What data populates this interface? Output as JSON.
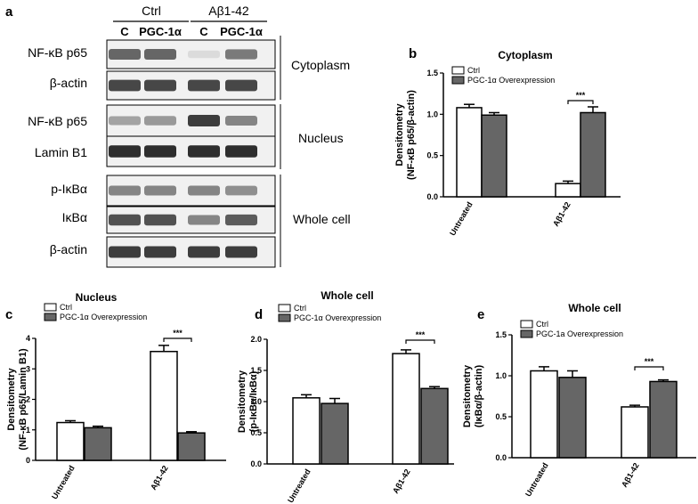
{
  "blot": {
    "panel_label": "a",
    "groups": [
      "Ctrl",
      "Aβ1-42"
    ],
    "lanes": [
      "C",
      "PGC-1α",
      "C",
      "PGC-1α"
    ],
    "rows": [
      "NF-κB p65",
      "β-actin",
      "NF-κB p65",
      "Lamin B1",
      "p-IκBα",
      "IκBα",
      "β-actin"
    ],
    "fractions": [
      "Cytoplasm",
      "Nucleus",
      "Whole cell"
    ],
    "band_intensity": [
      [
        0.65,
        0.65,
        0.08,
        0.55
      ],
      [
        0.8,
        0.8,
        0.8,
        0.8
      ],
      [
        0.35,
        0.4,
        0.85,
        0.5
      ],
      [
        0.92,
        0.92,
        0.92,
        0.92
      ],
      [
        0.5,
        0.5,
        0.5,
        0.45
      ],
      [
        0.75,
        0.75,
        0.5,
        0.7
      ],
      [
        0.85,
        0.85,
        0.85,
        0.85
      ]
    ]
  },
  "colors": {
    "ctrl_bar": "#ffffff",
    "pgc_bar": "#666666",
    "axis": "#000000"
  },
  "chart_data": [
    {
      "id": "b",
      "panel_label": "b",
      "type": "bar",
      "title": "Cytoplasm",
      "ylabel": [
        "Densitometry",
        "(NF-κB p65/β-actin)"
      ],
      "categories": [
        "Untreated",
        "Aβ1-42"
      ],
      "ylim": [
        0,
        1.5
      ],
      "yticks": [
        "0.0",
        "0.5",
        "1.0",
        "1.5"
      ],
      "series": [
        {
          "name": "Ctrl",
          "values": [
            1.08,
            0.16
          ],
          "errors": [
            0.04,
            0.03
          ]
        },
        {
          "name": "PGC-1α Overexpression",
          "values": [
            0.99,
            1.02
          ],
          "errors": [
            0.03,
            0.07
          ]
        }
      ],
      "significance": "***",
      "legend": "top-left"
    },
    {
      "id": "c",
      "panel_label": "c",
      "type": "bar",
      "title": "Nucleus",
      "ylabel": [
        "Densitometry",
        "(NF-κB p65/Lamin B1)"
      ],
      "categories": [
        "Untreated",
        "Aβ1-42"
      ],
      "ylim": [
        0,
        4
      ],
      "yticks": [
        "0",
        "1",
        "2",
        "3",
        "4"
      ],
      "series": [
        {
          "name": "Ctrl",
          "values": [
            1.24,
            3.57
          ],
          "errors": [
            0.06,
            0.2
          ]
        },
        {
          "name": "PGC-1α Overexpression",
          "values": [
            1.07,
            0.9
          ],
          "errors": [
            0.05,
            0.04
          ]
        }
      ],
      "significance": "***",
      "legend": "top-left"
    },
    {
      "id": "d",
      "panel_label": "d",
      "type": "bar",
      "title": "Whole cell",
      "ylabel": [
        "Densitometry",
        "(p-IκBα/IκBα)"
      ],
      "categories": [
        "Untreated",
        "Aβ1-42"
      ],
      "ylim": [
        0,
        2.0
      ],
      "yticks": [
        "0.0",
        "0.5",
        "1.0",
        "1.5",
        "2.0"
      ],
      "series": [
        {
          "name": "Ctrl",
          "values": [
            1.06,
            1.77
          ],
          "errors": [
            0.05,
            0.06
          ]
        },
        {
          "name": "PGC-1α Overexpression",
          "values": [
            0.97,
            1.21
          ],
          "errors": [
            0.08,
            0.03
          ]
        }
      ],
      "significance": "***",
      "legend": "top-left"
    },
    {
      "id": "e",
      "panel_label": "e",
      "type": "bar",
      "title": "Whole cell",
      "ylabel": [
        "Densitometry",
        "(IκBα/β-actin)"
      ],
      "categories": [
        "Untreated",
        "Aβ1-42"
      ],
      "ylim": [
        0,
        1.5
      ],
      "yticks": [
        "0.0",
        "0.5",
        "1.0",
        "1.5"
      ],
      "series": [
        {
          "name": "Ctrl",
          "values": [
            1.06,
            0.62
          ],
          "errors": [
            0.05,
            0.02
          ]
        },
        {
          "name": "PGC-1a Overexpression",
          "values": [
            0.98,
            0.93
          ],
          "errors": [
            0.08,
            0.02
          ]
        }
      ],
      "significance": "***",
      "legend": "top-left"
    }
  ]
}
